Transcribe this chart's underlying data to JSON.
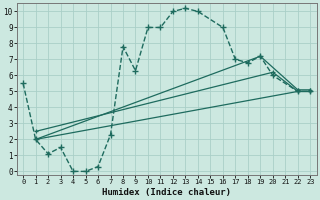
{
  "xlabel": "Humidex (Indice chaleur)",
  "bg_color": "#cce8e0",
  "grid_color": "#aacfc8",
  "line_color": "#1e6b5e",
  "xlim": [
    -0.5,
    23.5
  ],
  "ylim": [
    -0.2,
    10.5
  ],
  "xticks": [
    0,
    1,
    2,
    3,
    4,
    5,
    6,
    7,
    8,
    9,
    10,
    11,
    12,
    13,
    14,
    15,
    16,
    17,
    18,
    19,
    20,
    21,
    22,
    23
  ],
  "yticks": [
    0,
    1,
    2,
    3,
    4,
    5,
    6,
    7,
    8,
    9,
    10
  ],
  "main_series": {
    "x": [
      0,
      1,
      2,
      3,
      4,
      5,
      6,
      7,
      8,
      9,
      10,
      11,
      12,
      13,
      14,
      16,
      17,
      18,
      19,
      20,
      22,
      23
    ],
    "y": [
      5.5,
      2.0,
      1.1,
      1.5,
      0.0,
      0.0,
      0.3,
      2.3,
      7.8,
      6.3,
      9.0,
      9.0,
      10.0,
      10.2,
      10.0,
      9.0,
      7.0,
      6.8,
      7.2,
      6.0,
      5.0,
      5.0
    ]
  },
  "fan_lines": [
    {
      "x": [
        1,
        22,
        23
      ],
      "y": [
        2.0,
        5.0,
        5.0
      ]
    },
    {
      "x": [
        1,
        19,
        22,
        23
      ],
      "y": [
        2.0,
        7.2,
        5.1,
        5.1
      ]
    },
    {
      "x": [
        1,
        20,
        22,
        23
      ],
      "y": [
        2.5,
        6.2,
        5.0,
        5.0
      ]
    }
  ]
}
